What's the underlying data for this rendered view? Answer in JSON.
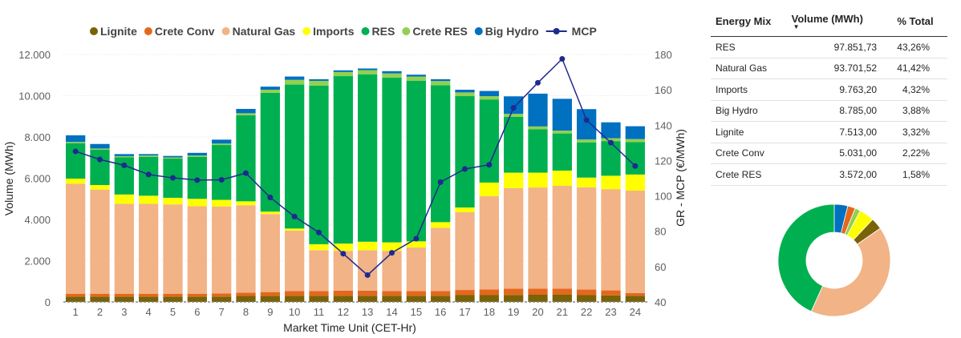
{
  "chart_data": {
    "type": "bar",
    "stacked": true,
    "categories": [
      "1",
      "2",
      "3",
      "4",
      "5",
      "6",
      "7",
      "8",
      "9",
      "10",
      "11",
      "12",
      "13",
      "14",
      "15",
      "16",
      "17",
      "18",
      "19",
      "20",
      "21",
      "22",
      "23",
      "24"
    ],
    "xlabel": "Market Time Unit (CET-Hr)",
    "ylabel": "Volume (MWh)",
    "y2label": "GR - MCP (€/MWh)",
    "ylim": [
      0,
      12000
    ],
    "y2lim": [
      40,
      180
    ],
    "yticks": [
      "0",
      "2.000",
      "4.000",
      "6.000",
      "8.000",
      "10.000",
      "12.000"
    ],
    "y2ticks": [
      "40",
      "60",
      "80",
      "100",
      "120",
      "140",
      "160",
      "180"
    ],
    "legend_position": "top",
    "series": [
      {
        "name": "Lignite",
        "color": "#7a6207",
        "values": [
          260,
          260,
          260,
          260,
          260,
          260,
          260,
          290,
          300,
          300,
          300,
          300,
          300,
          300,
          300,
          300,
          330,
          330,
          340,
          350,
          350,
          330,
          320,
          300
        ]
      },
      {
        "name": "Crete Conv",
        "color": "#e3681d",
        "values": [
          140,
          140,
          140,
          140,
          140,
          140,
          150,
          160,
          180,
          230,
          230,
          250,
          250,
          230,
          230,
          230,
          250,
          280,
          300,
          290,
          290,
          270,
          240,
          130
        ]
      },
      {
        "name": "Natural Gas",
        "color": "#f2b386",
        "values": [
          5330,
          5050,
          4360,
          4360,
          4330,
          4240,
          4220,
          4240,
          3780,
          2930,
          1980,
          1930,
          1960,
          1950,
          2110,
          3070,
          3770,
          4520,
          4880,
          4910,
          4990,
          4960,
          4910,
          4970
        ]
      },
      {
        "name": "Imports",
        "color": "#ffff00",
        "values": [
          250,
          220,
          450,
          390,
          320,
          360,
          320,
          190,
          120,
          100,
          290,
          350,
          410,
          410,
          300,
          270,
          230,
          660,
          750,
          720,
          740,
          470,
          650,
          780
        ]
      },
      {
        "name": "RES",
        "color": "#00b050",
        "values": [
          1720,
          1710,
          1800,
          1890,
          1900,
          2030,
          2660,
          4170,
          5760,
          6980,
          7690,
          8120,
          8120,
          7990,
          7790,
          6640,
          5400,
          4030,
          2710,
          2100,
          1800,
          1710,
          1680,
          1570
        ]
      },
      {
        "name": "Crete RES",
        "color": "#92d050",
        "values": [
          60,
          60,
          60,
          60,
          60,
          70,
          70,
          100,
          150,
          230,
          230,
          200,
          200,
          200,
          200,
          200,
          180,
          160,
          140,
          140,
          140,
          140,
          140,
          150
        ]
      },
      {
        "name": "Big Hydro",
        "color": "#0070c0",
        "values": [
          320,
          220,
          100,
          70,
          70,
          130,
          190,
          210,
          150,
          160,
          80,
          80,
          80,
          110,
          90,
          90,
          130,
          250,
          850,
          1590,
          1540,
          1470,
          770,
          620
        ]
      }
    ],
    "line_series": {
      "name": "MCP",
      "color": "#1f2a8f",
      "axis": "right",
      "values": [
        125.2,
        120.6,
        117.3,
        112.1,
        110.2,
        108.9,
        109.1,
        112.9,
        99.1,
        88.3,
        79.3,
        67.3,
        55.2,
        67.8,
        75.8,
        107.8,
        115.2,
        117.6,
        149.8,
        164.0,
        177.5,
        142.9,
        130.1,
        116.9
      ]
    }
  },
  "table": {
    "headers": {
      "energy_mix": "Energy Mix",
      "volume": "Volume (MWh)",
      "pct": "% Total"
    },
    "rows": [
      {
        "name": "RES",
        "volume": "97.851,73",
        "pct": "43,26%"
      },
      {
        "name": "Natural Gas",
        "volume": "93.701,52",
        "pct": "41,42%"
      },
      {
        "name": "Imports",
        "volume": "9.763,20",
        "pct": "4,32%"
      },
      {
        "name": "Big Hydro",
        "volume": "8.785,00",
        "pct": "3,88%"
      },
      {
        "name": "Lignite",
        "volume": "7.513,00",
        "pct": "3,32%"
      },
      {
        "name": "Crete Conv",
        "volume": "5.031,00",
        "pct": "2,22%"
      },
      {
        "name": "Crete RES",
        "volume": "3.572,00",
        "pct": "1,58%"
      }
    ]
  },
  "donut": {
    "slices": [
      {
        "name": "Big Hydro",
        "value": 3.88,
        "color": "#0070c0"
      },
      {
        "name": "Crete Conv",
        "value": 2.22,
        "color": "#e3681d"
      },
      {
        "name": "Crete RES",
        "value": 1.58,
        "color": "#92d050"
      },
      {
        "name": "Imports",
        "value": 4.32,
        "color": "#ffff00"
      },
      {
        "name": "Lignite",
        "value": 3.32,
        "color": "#7a6207"
      },
      {
        "name": "Natural Gas",
        "value": 41.42,
        "color": "#f2b386"
      },
      {
        "name": "RES",
        "value": 43.26,
        "color": "#00b050"
      }
    ]
  }
}
